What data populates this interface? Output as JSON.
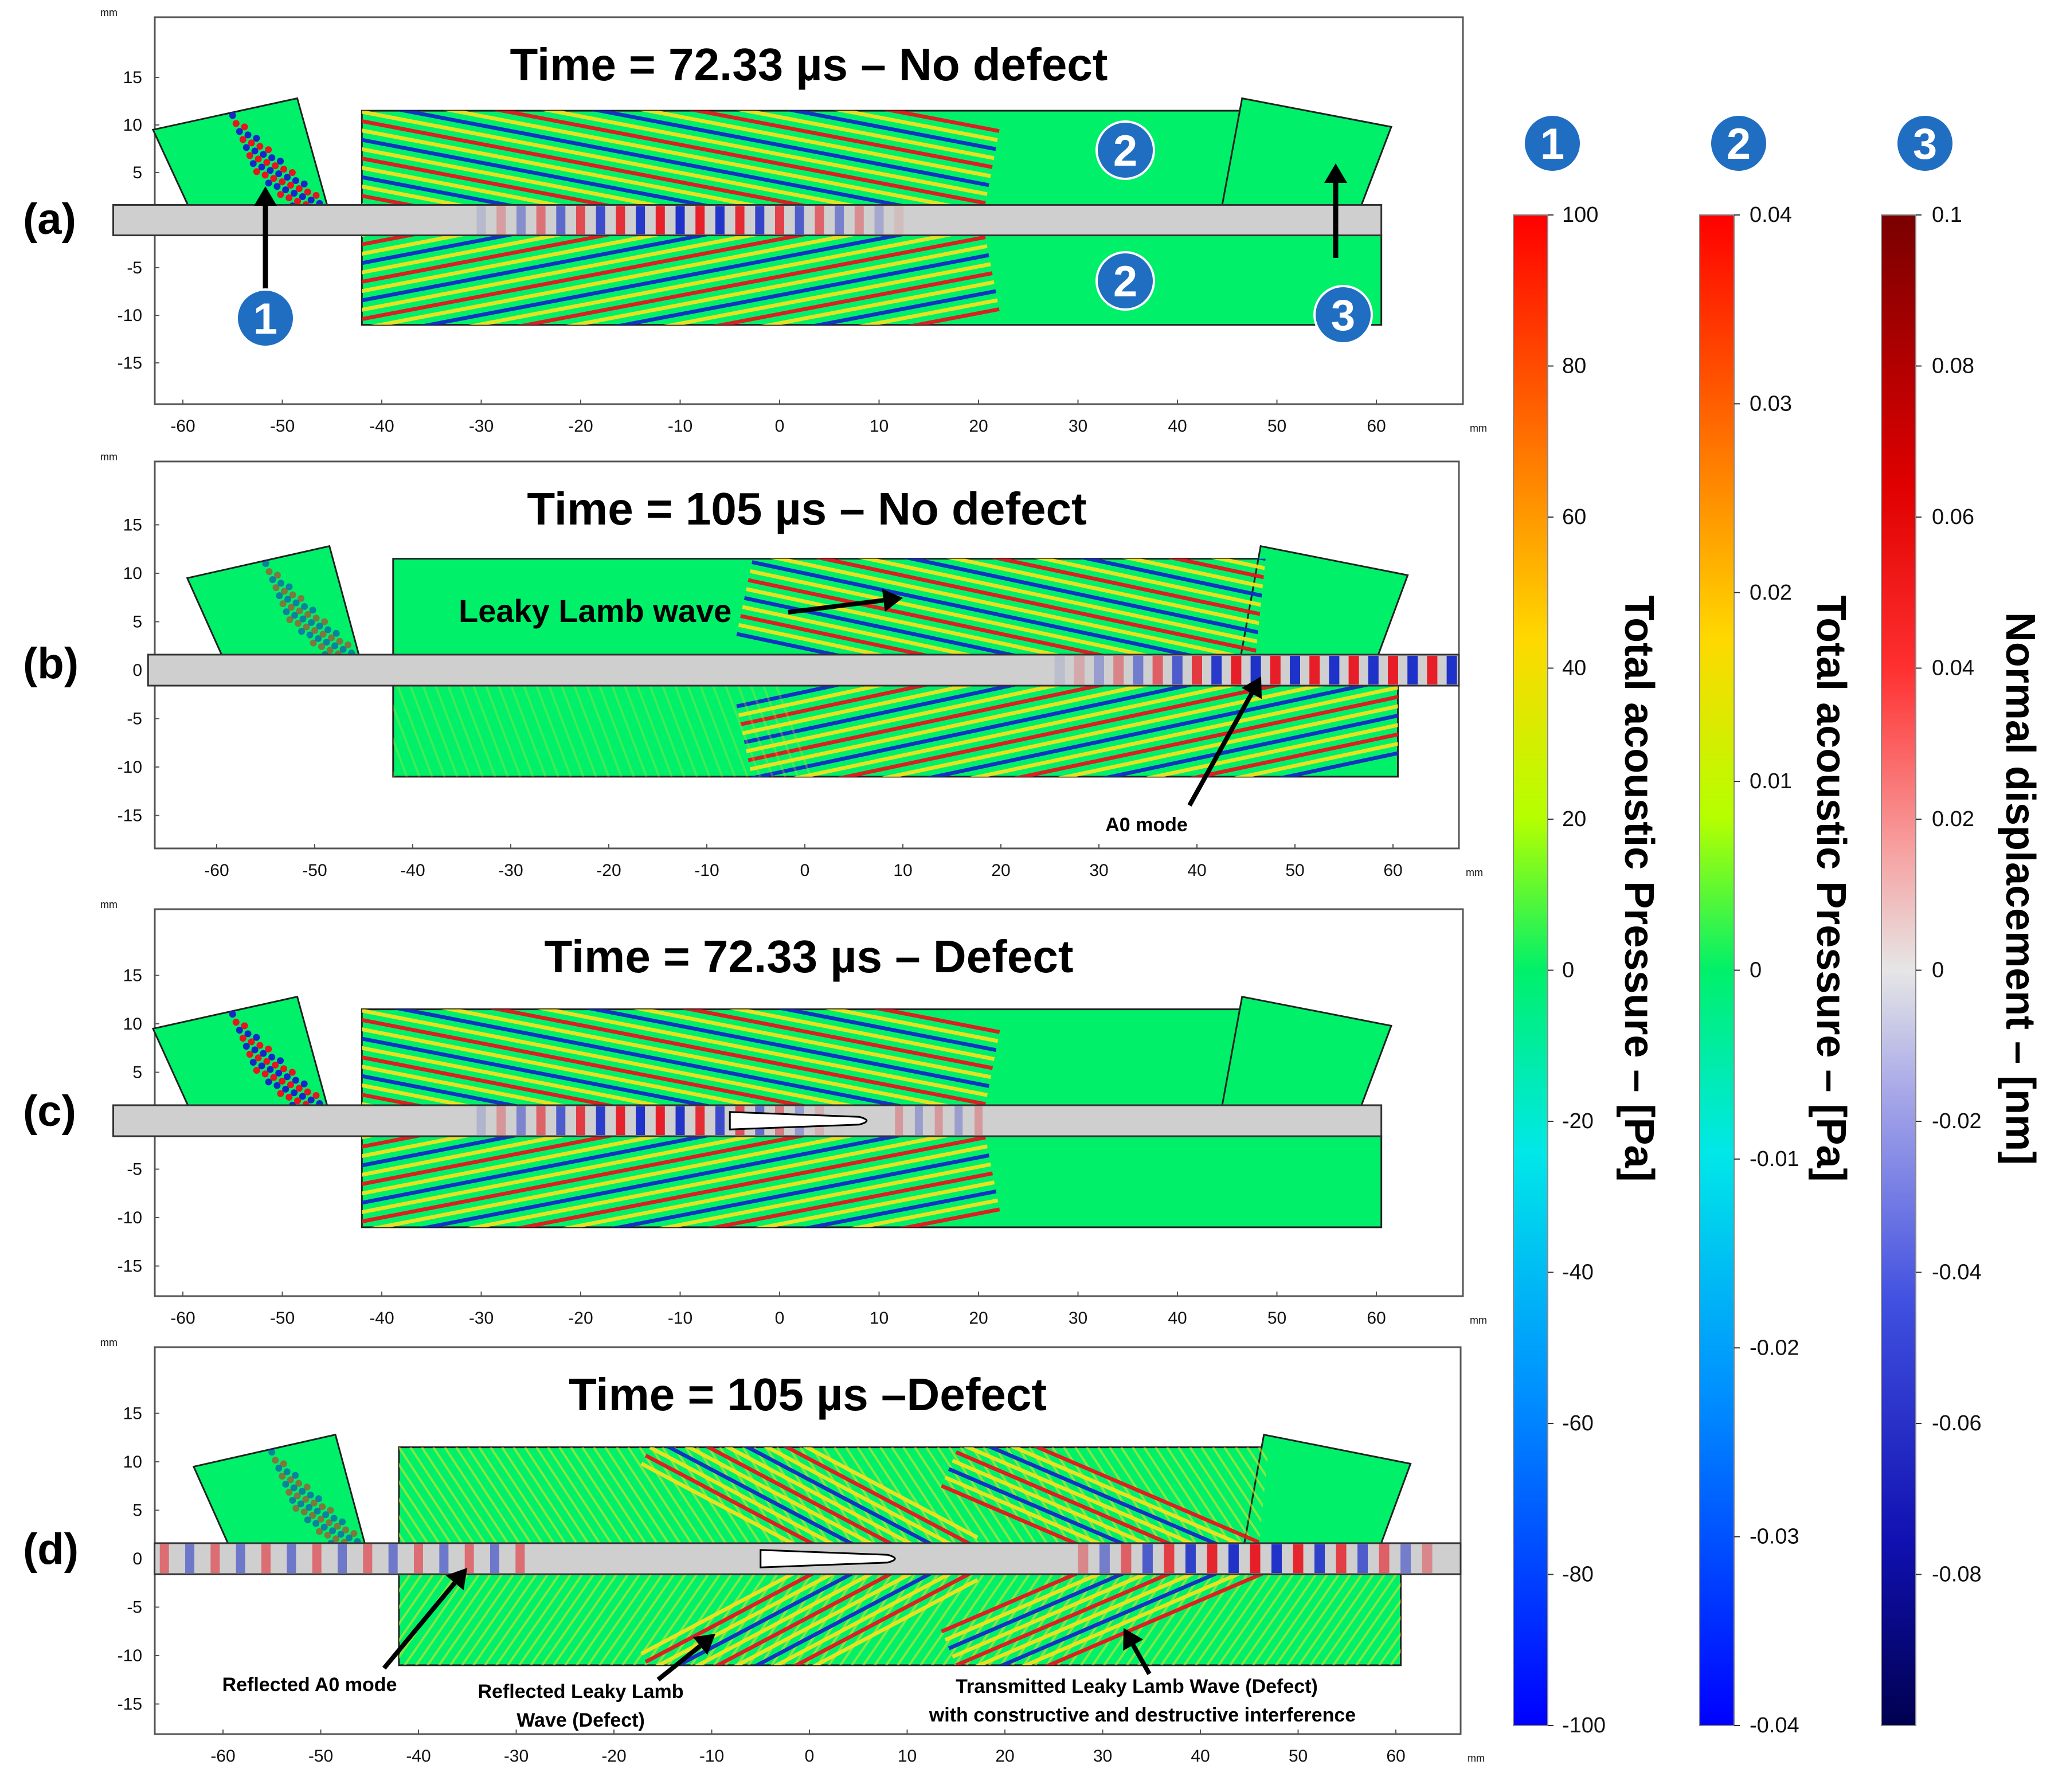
{
  "panels": [
    {
      "letter": "(a)",
      "title": "Time = 72.33 µs – No defect",
      "variant": "a",
      "y_ticks": [
        "15",
        "10",
        "5",
        "0",
        "-5",
        "-10",
        "-15"
      ],
      "x_ticks": [
        "-60",
        "-50",
        "-40",
        "-30",
        "-20",
        "-10",
        "0",
        "10",
        "20",
        "30",
        "40",
        "50",
        "60"
      ],
      "unit": "mm",
      "annotations": []
    },
    {
      "letter": "(b)",
      "title": "Time = 105 µs – No defect",
      "variant": "b",
      "y_ticks": [
        "15",
        "10",
        "5",
        "0",
        "-5",
        "-10",
        "-15"
      ],
      "x_ticks": [
        "-60",
        "-50",
        "-40",
        "-30",
        "-20",
        "-10",
        "0",
        "10",
        "20",
        "30",
        "40",
        "50",
        "60"
      ],
      "unit": "mm",
      "annotations": [
        "Leaky Lamb wave",
        "A0 mode"
      ]
    },
    {
      "letter": "(c)",
      "title": "Time = 72.33 µs – Defect",
      "variant": "c",
      "y_ticks": [
        "15",
        "10",
        "5",
        "0",
        "-5",
        "-10",
        "-15"
      ],
      "x_ticks": [
        "-60",
        "-50",
        "-40",
        "-30",
        "-20",
        "-10",
        "0",
        "10",
        "20",
        "30",
        "40",
        "50",
        "60"
      ],
      "unit": "mm",
      "annotations": []
    },
    {
      "letter": "(d)",
      "title": "Time = 105 µs –Defect",
      "variant": "d",
      "y_ticks": [
        "15",
        "10",
        "5",
        "0",
        "-5",
        "-10",
        "-15"
      ],
      "x_ticks": [
        "-60",
        "-50",
        "-40",
        "-30",
        "-20",
        "-10",
        "0",
        "10",
        "20",
        "30",
        "40",
        "50",
        "60"
      ],
      "unit": "mm",
      "annotations": [
        "Reflected A0 mode",
        "Reflected Leaky Lamb",
        "Wave (Defect)",
        "Transmitted Leaky Lamb  Wave (Defect)",
        "with constructive and destructive interference"
      ]
    }
  ],
  "region_markers": [
    "1",
    "2",
    "2",
    "3",
    "1"
  ],
  "colorbars": [
    {
      "id": "1",
      "label": "Total acoustic Pressure – [Pa]",
      "ticks": [
        "100",
        "80",
        "60",
        "40",
        "20",
        "0",
        "-20",
        "-40",
        "-60",
        "-80",
        "-100"
      ],
      "colormap": "jet"
    },
    {
      "id": "2",
      "label": "Total acoustic Pressure – [Pa]",
      "ticks": [
        "0.04",
        "0.03",
        "0.02",
        "0.01",
        "0",
        "-0.01",
        "-0.02",
        "-0.03",
        "-0.04"
      ],
      "colormap": "jet"
    },
    {
      "id": "3",
      "label": "Normal displacement  – [nm]",
      "ticks": [
        "0.1",
        "0.08",
        "0.06",
        "0.04",
        "0.02",
        "0",
        "-0.02",
        "-0.04",
        "-0.06",
        "-0.08"
      ],
      "colormap": "thermal-wave"
    }
  ],
  "colors": {
    "fluid": "#00f06a",
    "plate": "#cfcfcf",
    "marker": "#1f6ec2",
    "wave_red": "#e8141e",
    "wave_blue": "#1428c8",
    "wave_yellow": "#f2e01e"
  }
}
